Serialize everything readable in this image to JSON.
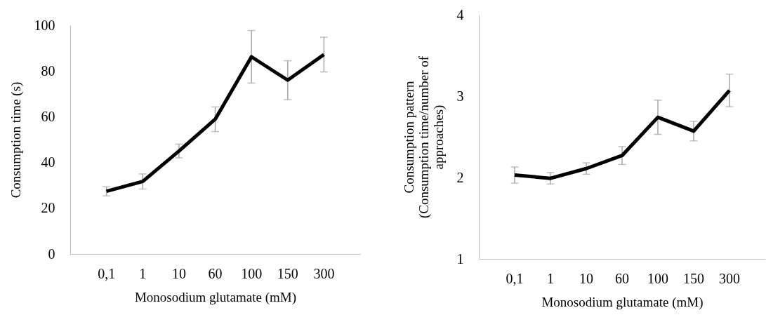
{
  "chart_data": [
    {
      "type": "line",
      "categories": [
        "0,1",
        "1",
        "10",
        "60",
        "100",
        "150",
        "300"
      ],
      "xlabel": "Monosodium glutamate (mM)",
      "ylabel": "Consumption time  (s)",
      "ylim": [
        0,
        100
      ],
      "yticks": [
        0,
        20,
        40,
        60,
        80,
        100
      ],
      "grid": false,
      "marker": "none",
      "line_style": "solid",
      "series": [
        {
          "color": "#000000",
          "values": [
            27.4,
            31.7,
            45,
            58.9,
            86.2,
            76,
            87.2
          ],
          "errors": [
            2,
            3.3,
            3,
            5.4,
            11.5,
            8.5,
            7.6
          ]
        }
      ]
    },
    {
      "type": "line",
      "categories": [
        "0,1",
        "1",
        "10",
        "60",
        "100",
        "150",
        "300"
      ],
      "xlabel": "Monosodium glutamate (mM)",
      "ylabel": "Consumption pattern (Consumption time/number of approaches)",
      "ylim": [
        1,
        4
      ],
      "yticks": [
        1,
        2,
        3,
        4
      ],
      "grid": false,
      "marker": "none",
      "line_style": "solid",
      "series": [
        {
          "color": "#000000",
          "values": [
            2.03,
            1.99,
            2.11,
            2.27,
            2.74,
            2.57,
            3.07
          ],
          "errors": [
            0.1,
            0.07,
            0.07,
            0.11,
            0.21,
            0.12,
            0.2
          ]
        }
      ]
    }
  ]
}
